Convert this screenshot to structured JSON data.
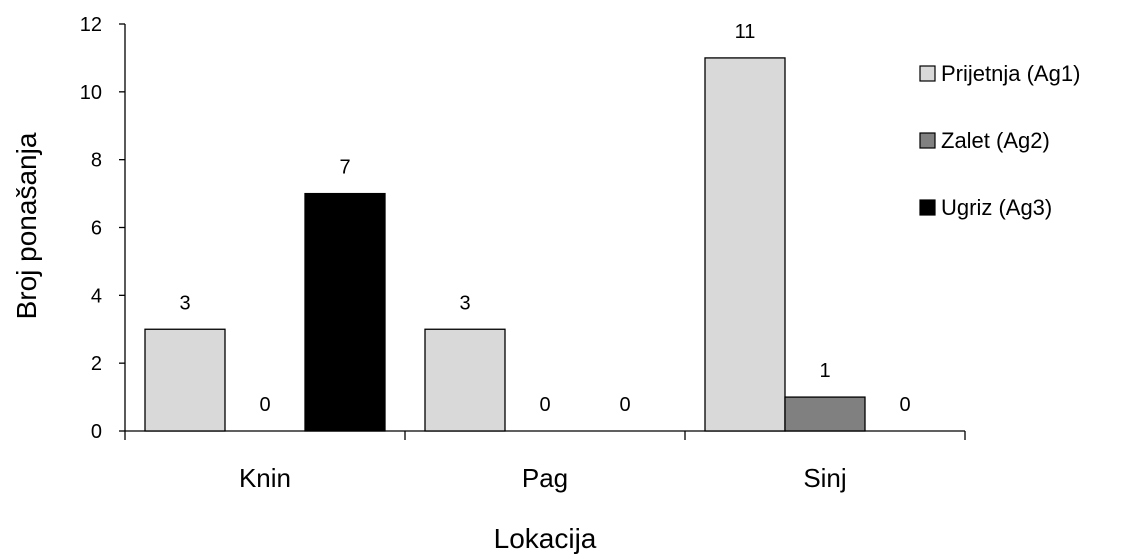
{
  "chart_data": {
    "type": "bar",
    "categories": [
      "Knin",
      "Pag",
      "Sinj"
    ],
    "series": [
      {
        "name": "Prijetnja (Ag1)",
        "values": [
          3,
          3,
          11
        ],
        "color": "#d9d9d9"
      },
      {
        "name": "Zalet (Ag2)",
        "values": [
          0,
          0,
          1
        ],
        "color": "#808080"
      },
      {
        "name": "Ugriz (Ag3)",
        "values": [
          7,
          0,
          0
        ],
        "color": "#000000"
      }
    ],
    "xlabel": "Lokacija",
    "ylabel": "Broj ponašanja",
    "ylim": [
      0,
      12
    ],
    "yticks": [
      "0",
      "2",
      "4",
      "6",
      "8",
      "10",
      "12"
    ],
    "legend_position": "right",
    "grid": false
  }
}
